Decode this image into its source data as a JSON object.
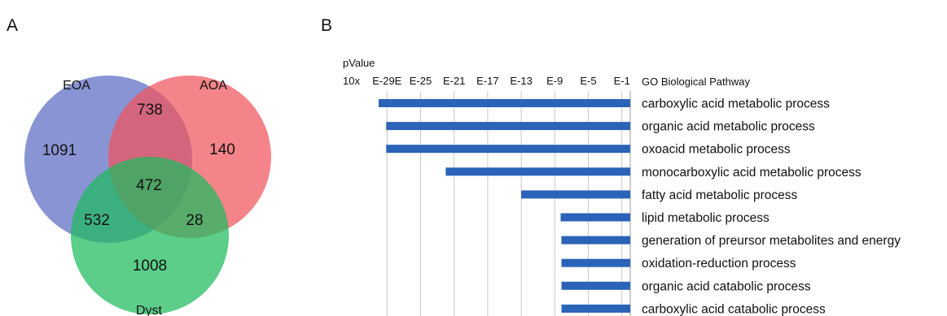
{
  "panels": {
    "a": "A",
    "b": "B"
  },
  "chart_data": [
    {
      "type": "venn",
      "sets": [
        {
          "name": "EOA",
          "color": "#5b6bc4"
        },
        {
          "name": "AOA",
          "color": "#f0545c"
        },
        {
          "name": "Dyst",
          "color": "#1dbb5d"
        }
      ],
      "regions": [
        {
          "sets": [
            "EOA"
          ],
          "value": 1091
        },
        {
          "sets": [
            "AOA"
          ],
          "value": 140
        },
        {
          "sets": [
            "Dyst"
          ],
          "value": 1008
        },
        {
          "sets": [
            "EOA",
            "AOA"
          ],
          "value": 738
        },
        {
          "sets": [
            "EOA",
            "Dyst"
          ],
          "value": 532
        },
        {
          "sets": [
            "AOA",
            "Dyst"
          ],
          "value": 28
        },
        {
          "sets": [
            "EOA",
            "AOA",
            "Dyst"
          ],
          "value": 472
        }
      ]
    },
    {
      "type": "bar",
      "orientation": "horizontal",
      "axis_title": "pValue",
      "axis_prefix": "10x",
      "x_ticks": [
        "E-29E",
        "E-25",
        "E-21",
        "E-17",
        "E-13",
        "E-9",
        "E-5",
        "E-1"
      ],
      "x_tick_values": [
        -29,
        -25,
        -21,
        -17,
        -13,
        -9,
        -5,
        -1
      ],
      "xlim": [
        -31,
        0
      ],
      "category_header": "GO Biological Pathway",
      "bar_color": "#2a63b8",
      "grid": true,
      "categories": [
        "carboxylic acid metabolic process",
        "organic acid metabolic process",
        "oxoacid metabolic process",
        "monocarboxylic acid metabolic process",
        "fatty acid metabolic process",
        "lipid metabolic process",
        "generation of preursor metabolites and energy",
        "oxidation-reduction process",
        "organic acid catabolic process",
        "carboxylic acid catabolic process"
      ],
      "values": [
        -30.0,
        -29.1,
        -29.1,
        -22.0,
        -13.0,
        -8.3,
        -8.2,
        -8.2,
        -8.2,
        -8.2
      ]
    }
  ]
}
